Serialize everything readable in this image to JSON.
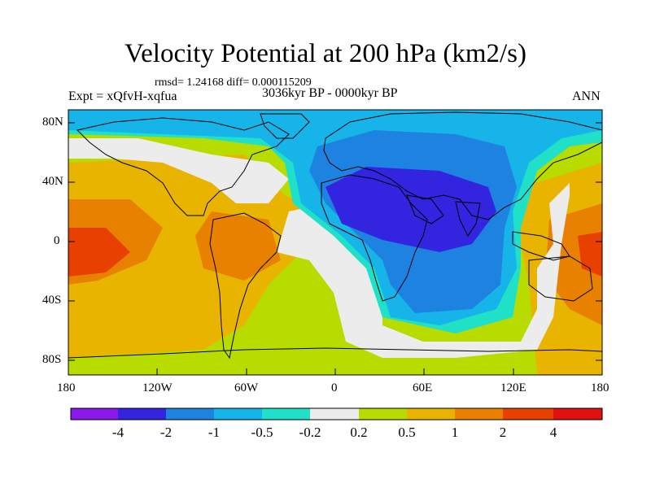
{
  "title": "Velocity Potential at 200 hPa (km2/s)",
  "stats": "rmsd= 1.24168 diff= 0.000115209",
  "experiment": "Expt = xQfvH-xqfua",
  "period": "3036kyr BP - 0000kyr BP",
  "season": "ANN",
  "lat_labels": [
    "80N",
    "40N",
    "0",
    "40S",
    "80S"
  ],
  "lon_labels": [
    "180",
    "120W",
    "60W",
    "0",
    "60E",
    "120E",
    "180"
  ],
  "colorbar": {
    "labels": [
      "-4",
      "-2",
      "-1",
      "-0.5",
      "-0.2",
      "0.2",
      "0.5",
      "1",
      "2",
      "4"
    ],
    "colors": [
      "#8a18e8",
      "#3324e0",
      "#1e82e0",
      "#16b4e8",
      "#20e0c8",
      "#ececec",
      "#b8dc00",
      "#e8b400",
      "#e88000",
      "#e84000",
      "#e01010"
    ]
  },
  "map_colors": {
    "pos_weak": "#b8dc00",
    "pos_mid": "#e8b400",
    "pos_strong": "#e88000",
    "pos_max": "#e84000",
    "neutral": "#ececec",
    "neg_weak": "#20e0c8",
    "neg_mid": "#16b4e8",
    "neg_strong": "#1e82e0",
    "neg_max": "#3324e0",
    "coast": "#000000"
  }
}
